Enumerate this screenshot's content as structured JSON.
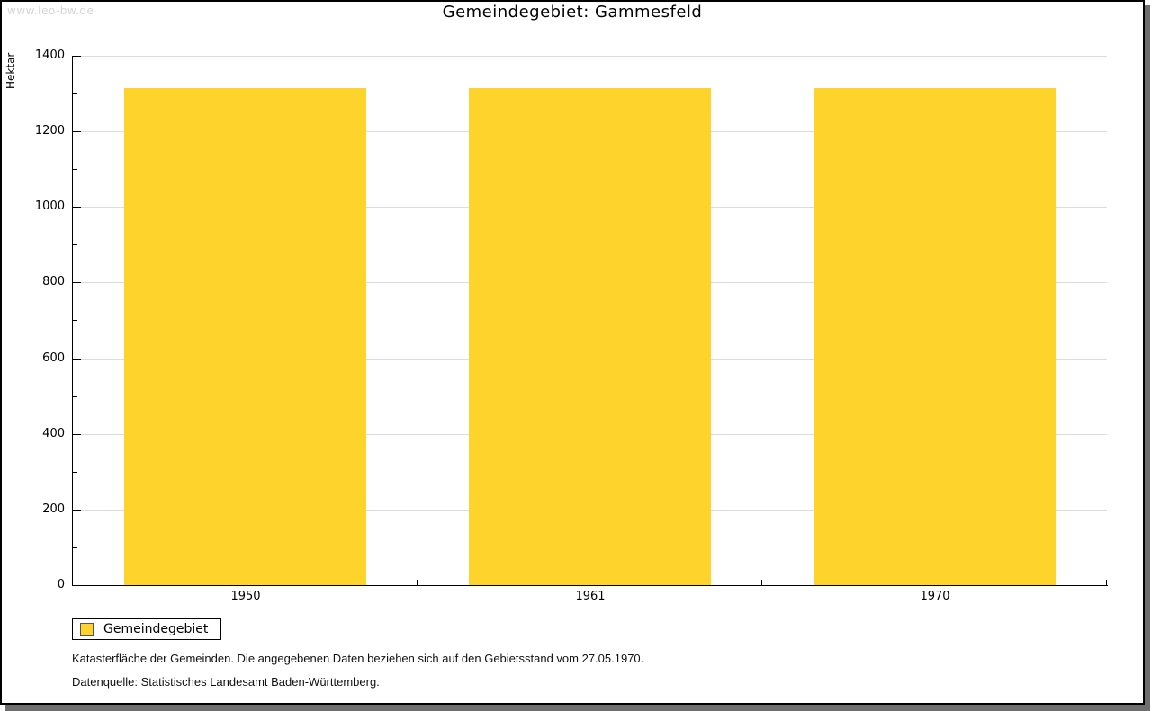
{
  "watermark": "www.leo-bw.de",
  "chart_data": {
    "type": "bar",
    "title": "Gemeindegebiet: Gammesfeld",
    "ylabel": "Hektar",
    "xlabel": "",
    "categories": [
      "1950",
      "1961",
      "1970"
    ],
    "series": [
      {
        "name": "Gemeindegebiet",
        "values": [
          1314,
          1314,
          1314
        ]
      }
    ],
    "ylim": [
      0,
      1400
    ],
    "yticks": [
      0,
      200,
      400,
      600,
      800,
      1000,
      1200,
      1400
    ],
    "minor_tick_step": 100,
    "grid": "horizontal-major-gridlines",
    "legend_position": "bottom-left"
  },
  "legend": {
    "label": "Gemeindegebiet"
  },
  "footnotes": [
    "Katasterfläche der Gemeinden. Die angegebenen Daten beziehen sich auf den Gebietsstand vom 27.05.1970.",
    "Datenquelle: Statistisches Landesamt Baden-Württemberg."
  ],
  "colors": {
    "bar": "#FDD32C",
    "grid": "#DCDCDC",
    "axis": "#000000",
    "watermark": "#D5D5D5",
    "frame_shadow": "#6E6E6E"
  }
}
